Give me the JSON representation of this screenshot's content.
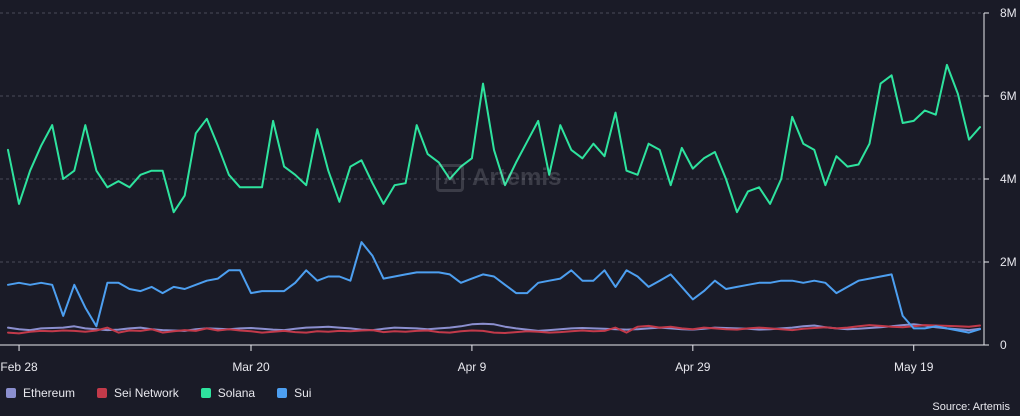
{
  "chart_data": {
    "type": "line",
    "x": [
      "Feb 27",
      "Feb 28",
      "Feb 29",
      "Mar 1",
      "Mar 2",
      "Mar 3",
      "Mar 4",
      "Mar 5",
      "Mar 6",
      "Mar 7",
      "Mar 8",
      "Mar 9",
      "Mar 10",
      "Mar 11",
      "Mar 12",
      "Mar 13",
      "Mar 14",
      "Mar 15",
      "Mar 16",
      "Mar 17",
      "Mar 18",
      "Mar 19",
      "Mar 20",
      "Mar 21",
      "Mar 22",
      "Mar 23",
      "Mar 24",
      "Mar 25",
      "Mar 26",
      "Mar 27",
      "Mar 28",
      "Mar 29",
      "Mar 30",
      "Mar 31",
      "Apr 1",
      "Apr 2",
      "Apr 3",
      "Apr 4",
      "Apr 5",
      "Apr 6",
      "Apr 7",
      "Apr 8",
      "Apr 9",
      "Apr 10",
      "Apr 11",
      "Apr 12",
      "Apr 13",
      "Apr 14",
      "Apr 15",
      "Apr 16",
      "Apr 17",
      "Apr 18",
      "Apr 19",
      "Apr 20",
      "Apr 21",
      "Apr 22",
      "Apr 23",
      "Apr 24",
      "Apr 25",
      "Apr 26",
      "Apr 27",
      "Apr 28",
      "Apr 29",
      "Apr 30",
      "May 1",
      "May 2",
      "May 3",
      "May 4",
      "May 5",
      "May 6",
      "May 7",
      "May 8",
      "May 9",
      "May 10",
      "May 11",
      "May 12",
      "May 13",
      "May 14",
      "May 15",
      "May 16",
      "May 17",
      "May 18",
      "May 19",
      "May 20",
      "May 21",
      "May 22",
      "May 23",
      "May 24",
      "May 25"
    ],
    "x_ticks": [
      "Feb 28",
      "Mar 20",
      "Apr 9",
      "Apr 29",
      "May 19"
    ],
    "y_ticks": [
      "0",
      "2M",
      "4M",
      "6M",
      "8M"
    ],
    "ylim": [
      0,
      8000000
    ],
    "y_axis_side": "right",
    "grid": true,
    "legend_position": "bottom-left",
    "series": [
      {
        "name": "Ethereum",
        "color": "#8b8fcf",
        "values": [
          420000,
          380000,
          360000,
          400000,
          410000,
          420000,
          450000,
          400000,
          380000,
          360000,
          370000,
          400000,
          420000,
          380000,
          360000,
          350000,
          340000,
          380000,
          400000,
          390000,
          380000,
          400000,
          410000,
          390000,
          370000,
          360000,
          390000,
          420000,
          430000,
          440000,
          420000,
          400000,
          370000,
          360000,
          390000,
          420000,
          410000,
          400000,
          380000,
          400000,
          420000,
          450000,
          500000,
          510000,
          500000,
          440000,
          400000,
          370000,
          340000,
          360000,
          380000,
          400000,
          410000,
          400000,
          390000,
          380000,
          370000,
          380000,
          400000,
          420000,
          400000,
          380000,
          370000,
          390000,
          420000,
          410000,
          400000,
          390000,
          370000,
          380000,
          400000,
          420000,
          450000,
          470000,
          430000,
          400000,
          380000,
          390000,
          410000,
          430000,
          450000,
          480000,
          500000,
          470000,
          430000,
          400000,
          380000,
          360000,
          390000
        ]
      },
      {
        "name": "Sei Network",
        "color": "#c23a4a",
        "values": [
          300000,
          280000,
          320000,
          340000,
          330000,
          350000,
          340000,
          320000,
          350000,
          420000,
          300000,
          350000,
          340000,
          380000,
          300000,
          330000,
          360000,
          340000,
          400000,
          350000,
          380000,
          350000,
          330000,
          300000,
          320000,
          340000,
          310000,
          300000,
          330000,
          320000,
          340000,
          330000,
          350000,
          360000,
          310000,
          330000,
          320000,
          340000,
          350000,
          310000,
          300000,
          330000,
          350000,
          340000,
          300000,
          290000,
          310000,
          330000,
          320000,
          300000,
          310000,
          330000,
          350000,
          330000,
          340000,
          420000,
          300000,
          440000,
          460000,
          420000,
          440000,
          400000,
          380000,
          420000,
          400000,
          380000,
          370000,
          400000,
          420000,
          400000,
          380000,
          360000,
          390000,
          410000,
          430000,
          400000,
          420000,
          450000,
          480000,
          460000,
          440000,
          430000,
          450000,
          480000,
          470000,
          460000,
          450000,
          440000,
          470000
        ]
      },
      {
        "name": "Solana",
        "color": "#2ee39e",
        "values": [
          4700000,
          3400000,
          4200000,
          4800000,
          5300000,
          4000000,
          4200000,
          5300000,
          4200000,
          3800000,
          3950000,
          3800000,
          4100000,
          4200000,
          4200000,
          3200000,
          3600000,
          5100000,
          5450000,
          4800000,
          4100000,
          3800000,
          3800000,
          3800000,
          5400000,
          4300000,
          4100000,
          3850000,
          5200000,
          4200000,
          3450000,
          4300000,
          4450000,
          3900000,
          3400000,
          3850000,
          3900000,
          5300000,
          4600000,
          4400000,
          4000000,
          4300000,
          4500000,
          6300000,
          4700000,
          3850000,
          4400000,
          4900000,
          5400000,
          4100000,
          5300000,
          4700000,
          4500000,
          4850000,
          4550000,
          5600000,
          4200000,
          4100000,
          4850000,
          4700000,
          3850000,
          4750000,
          4250000,
          4500000,
          4650000,
          4000000,
          3200000,
          3700000,
          3800000,
          3400000,
          4000000,
          5500000,
          4850000,
          4700000,
          3850000,
          4550000,
          4300000,
          4350000,
          4850000,
          6300000,
          6500000,
          5350000,
          5400000,
          5650000,
          5550000,
          6750000,
          6050000,
          4950000,
          5250000
        ]
      },
      {
        "name": "Sui",
        "color": "#4d9ff0",
        "values": [
          1450000,
          1500000,
          1450000,
          1500000,
          1450000,
          700000,
          1450000,
          900000,
          450000,
          1500000,
          1500000,
          1350000,
          1300000,
          1400000,
          1250000,
          1400000,
          1350000,
          1450000,
          1550000,
          1600000,
          1800000,
          1800000,
          1250000,
          1300000,
          1300000,
          1300000,
          1500000,
          1800000,
          1550000,
          1650000,
          1650000,
          1550000,
          2480000,
          2150000,
          1600000,
          1650000,
          1700000,
          1750000,
          1750000,
          1750000,
          1700000,
          1500000,
          1600000,
          1700000,
          1650000,
          1450000,
          1250000,
          1250000,
          1500000,
          1550000,
          1600000,
          1800000,
          1550000,
          1550000,
          1800000,
          1400000,
          1800000,
          1650000,
          1400000,
          1550000,
          1700000,
          1400000,
          1100000,
          1300000,
          1550000,
          1350000,
          1400000,
          1450000,
          1500000,
          1500000,
          1550000,
          1550000,
          1500000,
          1550000,
          1500000,
          1250000,
          1400000,
          1550000,
          1600000,
          1650000,
          1700000,
          700000,
          400000,
          400000,
          450000,
          400000,
          350000,
          300000,
          380000
        ]
      }
    ]
  },
  "legend": {
    "items": [
      {
        "label": "Ethereum",
        "color": "#8b8fcf"
      },
      {
        "label": "Sei Network",
        "color": "#c23a4a"
      },
      {
        "label": "Solana",
        "color": "#2ee39e"
      },
      {
        "label": "Sui",
        "color": "#4d9ff0"
      }
    ]
  },
  "watermark": {
    "text": "Artemis",
    "icon": "artemis-logo-icon"
  },
  "source": "Source: Artemis"
}
